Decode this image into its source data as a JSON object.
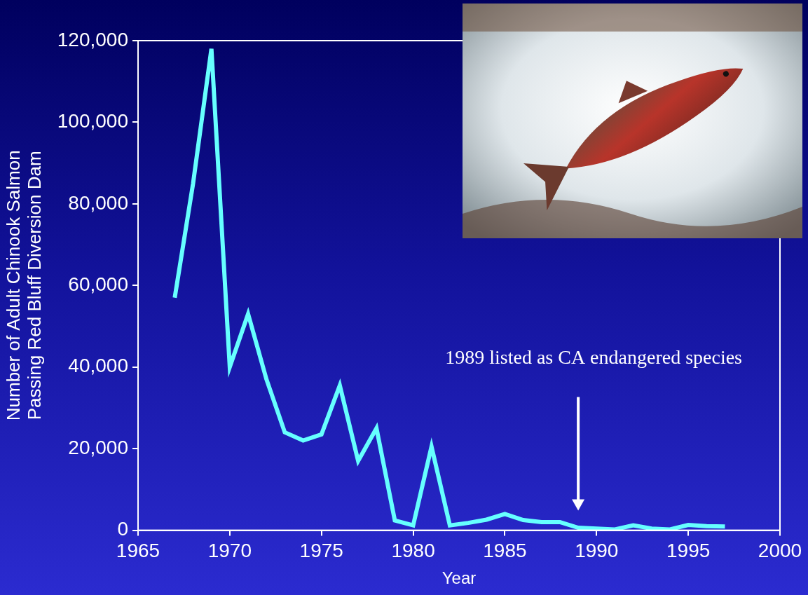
{
  "chart_data": {
    "type": "line",
    "x_label": "Year",
    "y_label": [
      "Number of Adult Chinook Salmon",
      "Passing Red Bluff Diversion Dam"
    ],
    "x": [
      1967,
      1968,
      1969,
      1970,
      1971,
      1972,
      1973,
      1974,
      1975,
      1976,
      1977,
      1978,
      1979,
      1980,
      1981,
      1982,
      1983,
      1984,
      1985,
      1986,
      1987,
      1988,
      1989,
      1990,
      1991,
      1992,
      1993,
      1994,
      1995,
      1996,
      1997
    ],
    "values": [
      57000,
      85000,
      118000,
      40000,
      53000,
      37000,
      24000,
      22000,
      23500,
      35500,
      17000,
      25000,
      2400,
      1200,
      20500,
      1200,
      1800,
      2600,
      4000,
      2500,
      2000,
      2000,
      600,
      400,
      200,
      1200,
      400,
      200,
      1300,
      1000,
      900
    ],
    "color": "#66ffff",
    "marker": "none",
    "grid": false,
    "xlim": [
      1965,
      2000
    ],
    "xticks": [
      1965,
      1970,
      1975,
      1980,
      1985,
      1990,
      1995,
      2000
    ],
    "ylim": [
      0,
      120000
    ],
    "yticks": [
      0,
      {
        "value": 20000,
        "label": "20,000"
      },
      {
        "value": 40000,
        "label": "40,000"
      },
      {
        "value": 60000,
        "label": "60,000"
      },
      {
        "value": 80000,
        "label": "80,000"
      },
      {
        "value": 100000,
        "label": "100,000"
      },
      {
        "value": 120000,
        "label": "120,000"
      }
    ],
    "annotations": [
      {
        "text": "1989 listed as CA endangered species",
        "x": 1989
      }
    ]
  }
}
